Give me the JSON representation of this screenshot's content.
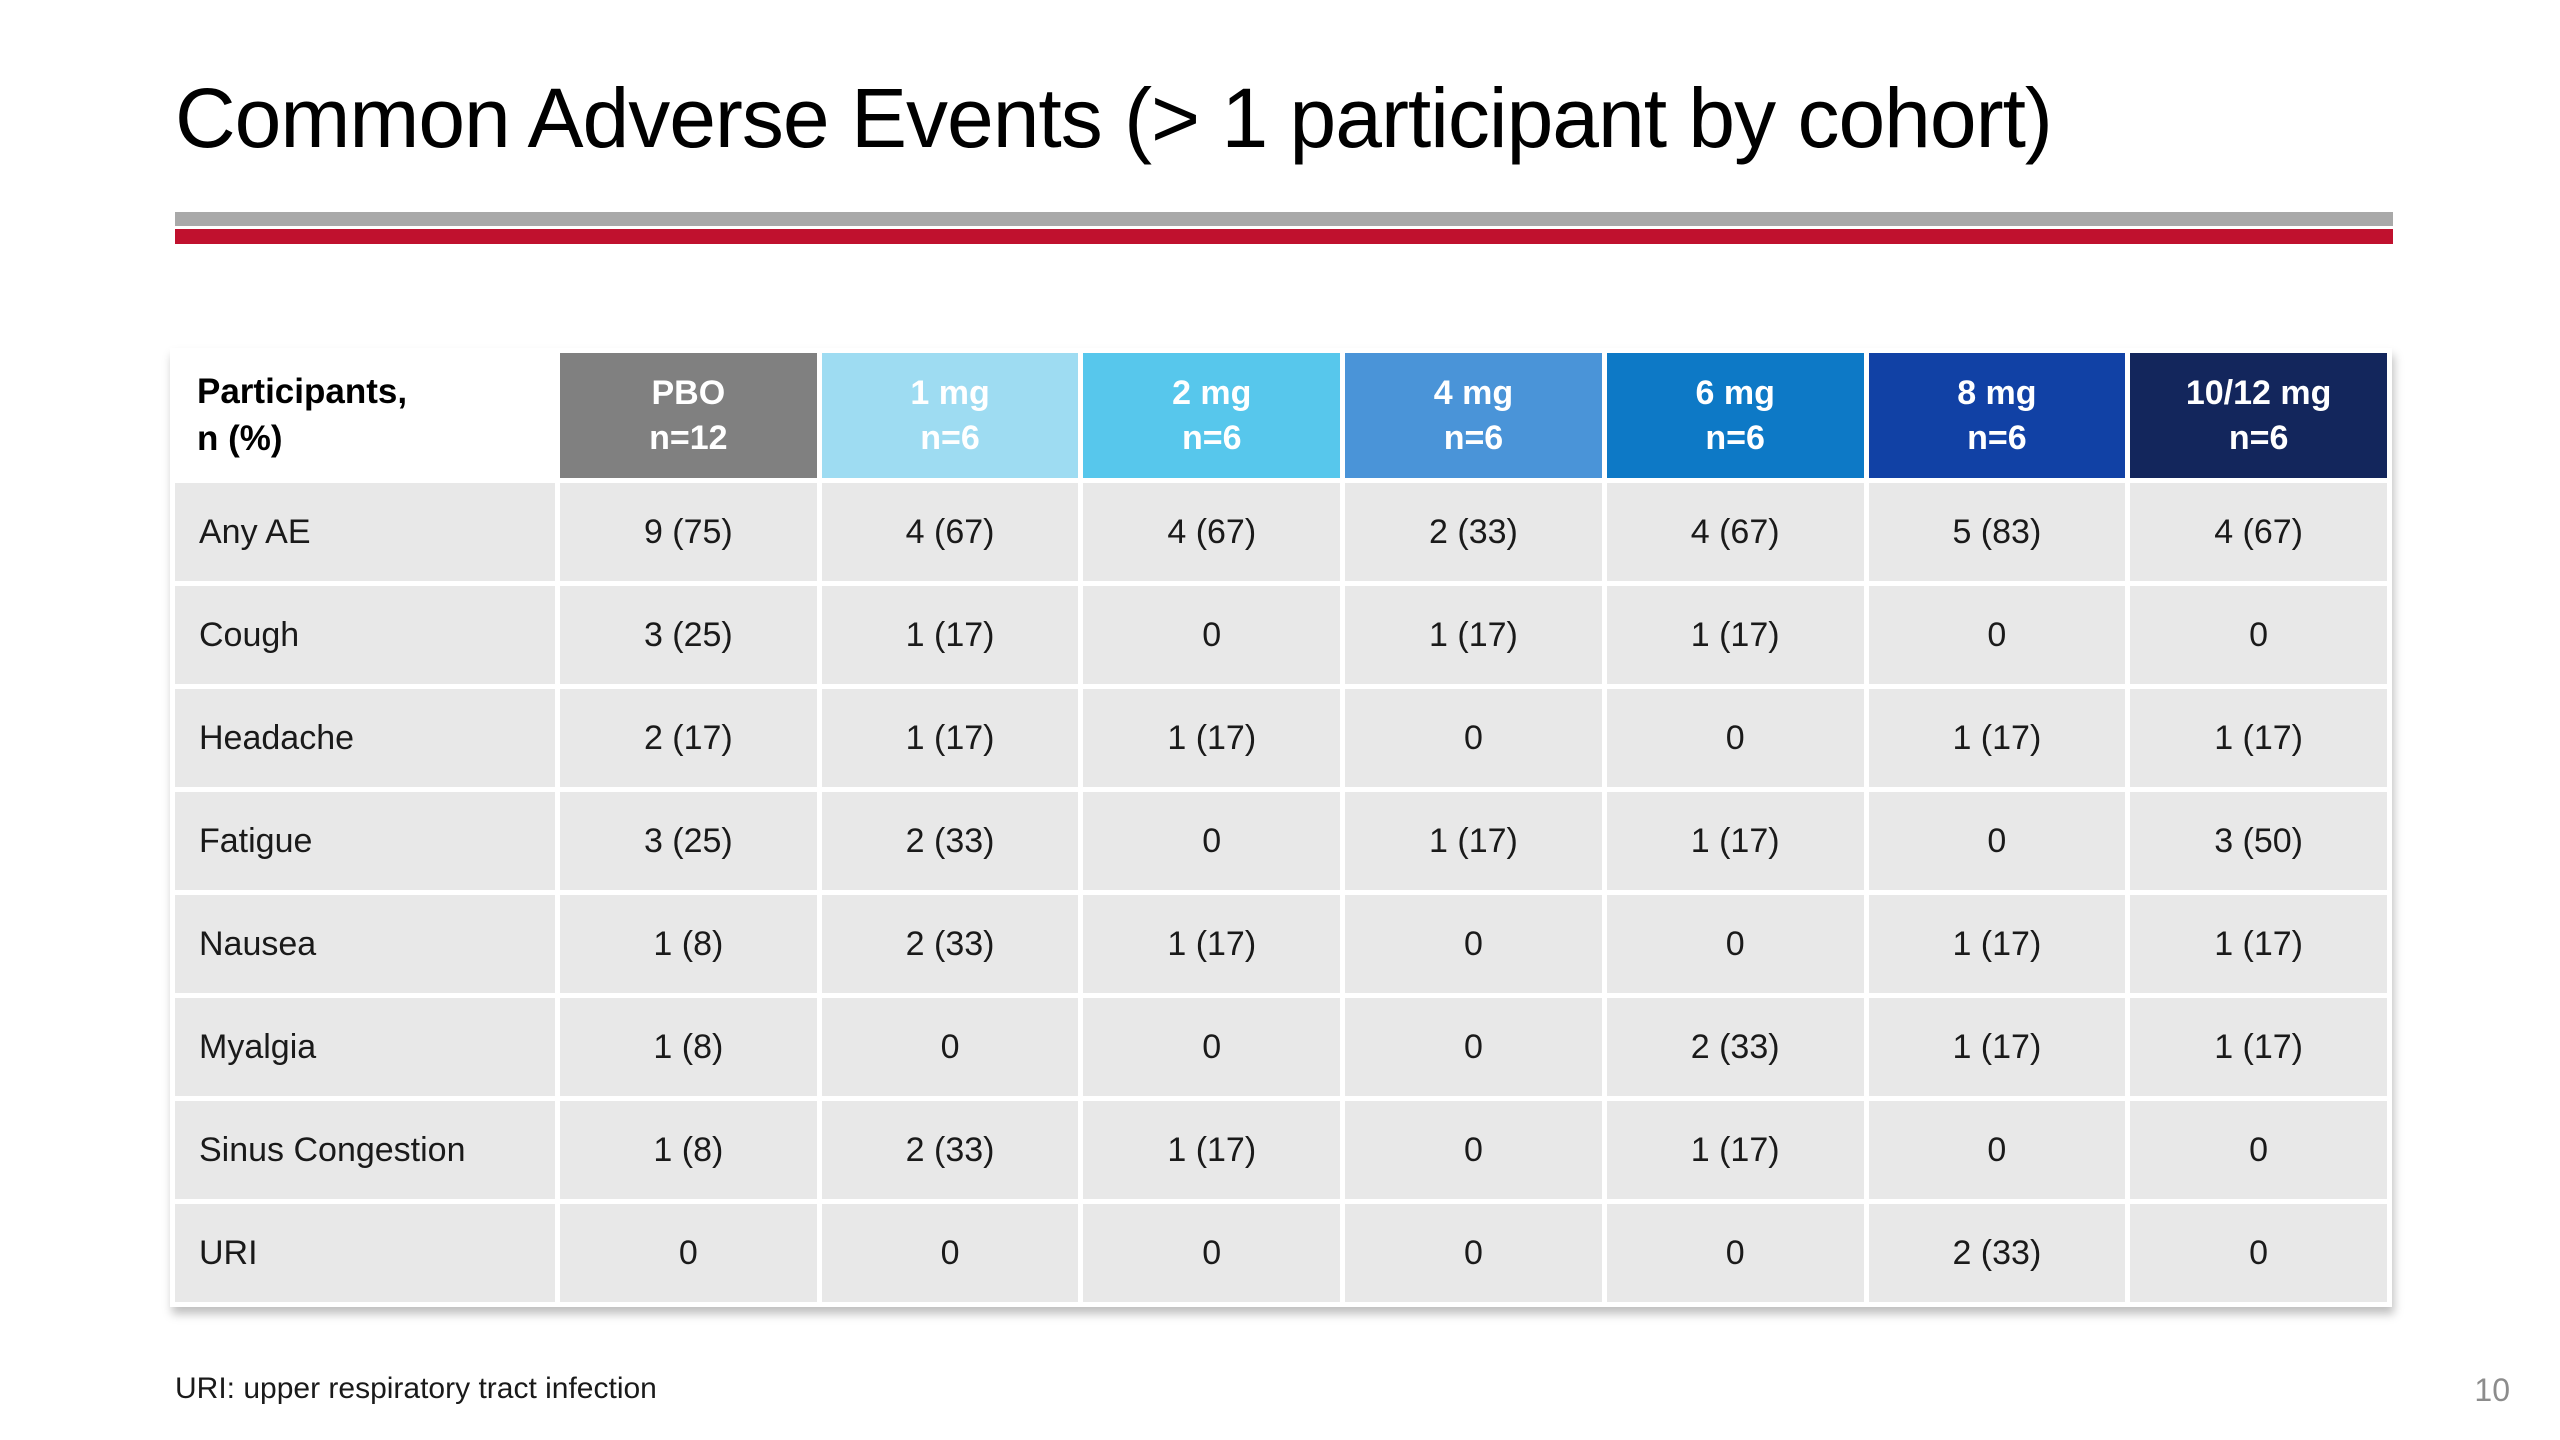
{
  "slide": {
    "title": "Common Adverse Events (> 1 participant by cohort)",
    "footnote": "URI: upper respiratory tract infection",
    "page_number": "10"
  },
  "divider": {
    "gray_color": "#a9a9a9",
    "red_color": "#c0112e"
  },
  "table": {
    "cell_bg": "#e8e8e8",
    "corner_header": {
      "line1": "Participants,",
      "line2": "n (%)"
    },
    "columns": [
      {
        "label": "PBO",
        "n": "n=12",
        "color": "#808080"
      },
      {
        "label": "1 mg",
        "n": "n=6",
        "color": "#9edcf2"
      },
      {
        "label": "2 mg",
        "n": "n=6",
        "color": "#57c7ec"
      },
      {
        "label": "4 mg",
        "n": "n=6",
        "color": "#4a94d8"
      },
      {
        "label": "6 mg",
        "n": "n=6",
        "color": "#0d79c6"
      },
      {
        "label": "8 mg",
        "n": "n=6",
        "color": "#1141a5"
      },
      {
        "label": "10/12 mg",
        "n": "n=6",
        "color": "#13265c"
      }
    ],
    "rows": [
      {
        "label": "Any AE",
        "values": [
          "9 (75)",
          "4 (67)",
          "4 (67)",
          "2 (33)",
          "4 (67)",
          "5 (83)",
          "4 (67)"
        ]
      },
      {
        "label": "Cough",
        "values": [
          "3 (25)",
          "1 (17)",
          "0",
          "1 (17)",
          "1 (17)",
          "0",
          "0"
        ]
      },
      {
        "label": "Headache",
        "values": [
          "2 (17)",
          "1 (17)",
          "1 (17)",
          "0",
          "0",
          "1 (17)",
          "1 (17)"
        ]
      },
      {
        "label": "Fatigue",
        "values": [
          "3 (25)",
          "2 (33)",
          "0",
          "1 (17)",
          "1 (17)",
          "0",
          "3 (50)"
        ]
      },
      {
        "label": "Nausea",
        "values": [
          "1 (8)",
          "2 (33)",
          "1 (17)",
          "0",
          "0",
          "1 (17)",
          "1 (17)"
        ]
      },
      {
        "label": "Myalgia",
        "values": [
          "1 (8)",
          "0",
          "0",
          "0",
          "2 (33)",
          "1 (17)",
          "1 (17)"
        ]
      },
      {
        "label": "Sinus Congestion",
        "values": [
          "1 (8)",
          "2 (33)",
          "1 (17)",
          "0",
          "1 (17)",
          "0",
          "0"
        ]
      },
      {
        "label": "URI",
        "values": [
          "0",
          "0",
          "0",
          "0",
          "0",
          "2 (33)",
          "0"
        ]
      }
    ]
  }
}
